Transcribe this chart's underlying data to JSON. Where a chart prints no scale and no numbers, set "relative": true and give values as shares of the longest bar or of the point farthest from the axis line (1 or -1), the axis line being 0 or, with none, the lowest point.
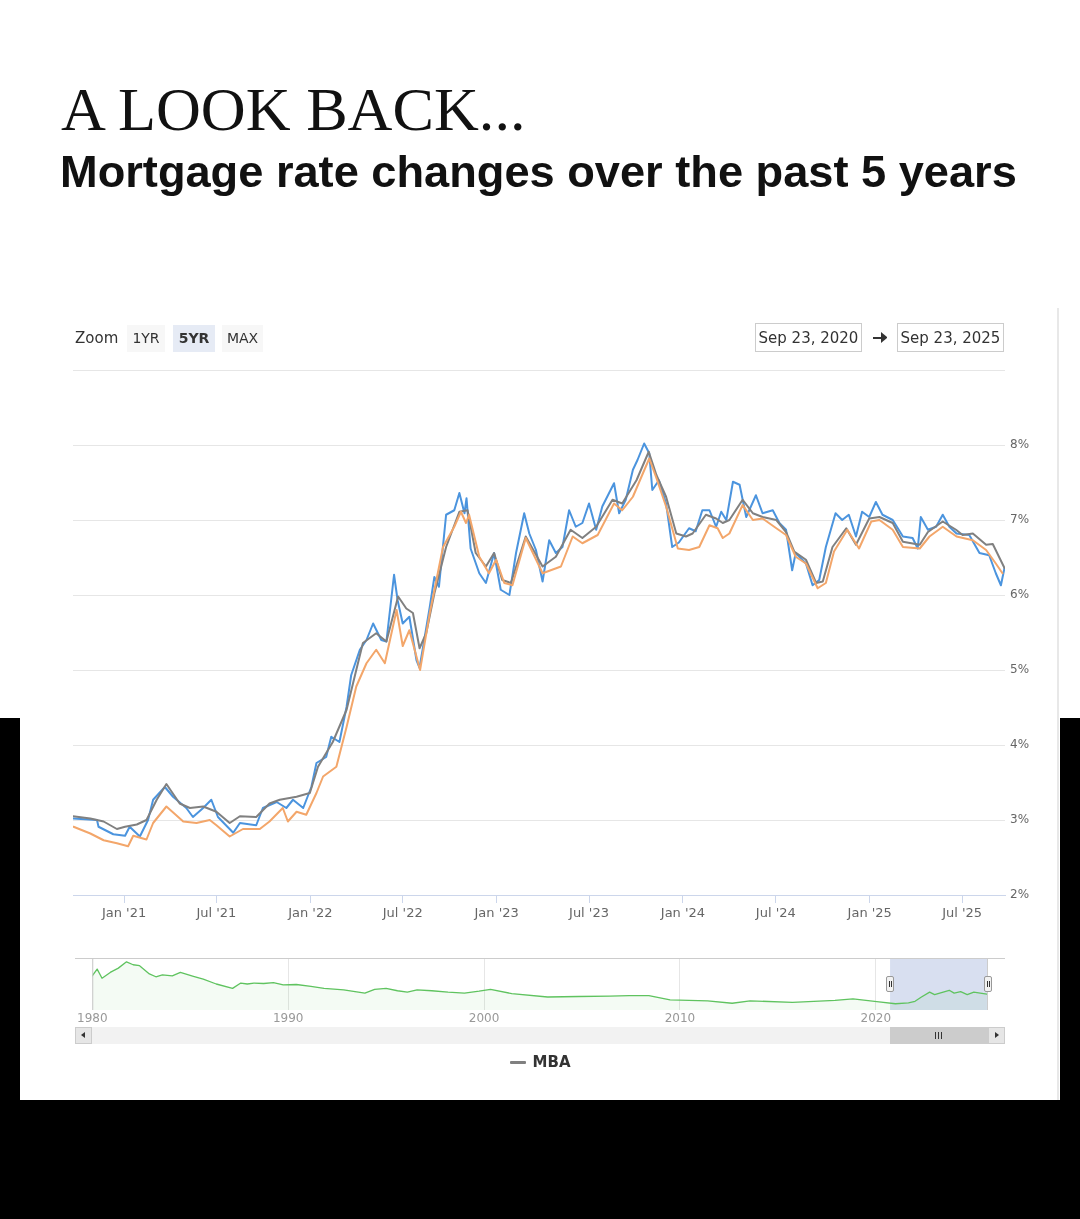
{
  "chart_data": [
    {
      "type": "line",
      "title": "A LOOK BACK...",
      "subtitle": "Mortgage rate changes over the past 5 years",
      "annotations": [
        "Zoom",
        "1YR",
        "5YR",
        "MAX",
        "Sep 23, 2020",
        "Sep 23, 2025"
      ],
      "xlim": [
        "2020-09-23",
        "2025-09-23"
      ],
      "xticks": [
        {
          "value": "2021-01-01",
          "label": "Jan '21"
        },
        {
          "value": "2021-07-01",
          "label": "Jul '21"
        },
        {
          "value": "2022-01-01",
          "label": "Jan '22"
        },
        {
          "value": "2022-07-01",
          "label": "Jul '22"
        },
        {
          "value": "2023-01-01",
          "label": "Jan '23"
        },
        {
          "value": "2023-07-01",
          "label": "Jul '23"
        },
        {
          "value": "2024-01-01",
          "label": "Jan '24"
        },
        {
          "value": "2024-07-01",
          "label": "Jul '24"
        },
        {
          "value": "2025-01-01",
          "label": "Jan '25"
        },
        {
          "value": "2025-07-01",
          "label": "Jul '25"
        }
      ],
      "ylim": [
        2,
        9
      ],
      "yticks": [
        {
          "value": 2,
          "label": "2%"
        },
        {
          "value": 3,
          "label": "3%"
        },
        {
          "value": 4,
          "label": "4%"
        },
        {
          "value": 5,
          "label": "5%"
        },
        {
          "value": 6,
          "label": "6%"
        },
        {
          "value": 7,
          "label": "7%"
        },
        {
          "value": 8,
          "label": "8%"
        },
        {
          "value": 9,
          "label": null
        }
      ],
      "grid": "y",
      "legend": "bottom",
      "marker": "none",
      "line_style": "solid",
      "series": [
        {
          "color": "#4b94de",
          "x": [
            "2020-09-23",
            "2020-11-09",
            "2020-11-12",
            "2020-12-11",
            "2021-01-03",
            "2021-01-12",
            "2021-02-01",
            "2021-02-17",
            "2021-02-27",
            "2021-03-22",
            "2021-04-07",
            "2021-05-03",
            "2021-05-16",
            "2021-06-05",
            "2021-06-21",
            "2021-07-04",
            "2021-08-03",
            "2021-08-16",
            "2021-09-17",
            "2021-09-30",
            "2021-10-27",
            "2021-11-15",
            "2021-11-28",
            "2021-12-18",
            "2022-01-03",
            "2022-01-13",
            "2022-02-01",
            "2022-02-11",
            "2022-02-27",
            "2022-03-13",
            "2022-03-22",
            "2022-04-08",
            "2022-04-21",
            "2022-05-04",
            "2022-05-20",
            "2022-05-30",
            "2022-06-14",
            "2022-06-21",
            "2022-07-01",
            "2022-07-14",
            "2022-07-28",
            "2022-08-03",
            "2022-08-23",
            "2022-09-01",
            "2022-09-10",
            "2022-09-24",
            "2022-10-10",
            "2022-10-20",
            "2022-10-30",
            "2022-11-03",
            "2022-11-11",
            "2022-11-28",
            "2022-12-11",
            "2022-12-27",
            "2023-01-09",
            "2023-01-26",
            "2023-02-08",
            "2023-02-24",
            "2023-03-06",
            "2023-03-19",
            "2023-04-01",
            "2023-04-14",
            "2023-04-27",
            "2023-05-10",
            "2023-05-23",
            "2023-06-05",
            "2023-06-18",
            "2023-07-01",
            "2023-07-15",
            "2023-07-27",
            "2023-08-19",
            "2023-08-29",
            "2023-09-11",
            "2023-09-25",
            "2023-10-04",
            "2023-10-17",
            "2023-10-27",
            "2023-11-02",
            "2023-11-15",
            "2023-11-29",
            "2023-12-11",
            "2023-12-24",
            "2024-01-13",
            "2024-01-26",
            "2024-02-08",
            "2024-02-22",
            "2024-03-06",
            "2024-03-16",
            "2024-03-26",
            "2024-04-08",
            "2024-04-21",
            "2024-05-04",
            "2024-05-23",
            "2024-06-05",
            "2024-06-25",
            "2024-07-08",
            "2024-07-21",
            "2024-08-02",
            "2024-08-09",
            "2024-08-29",
            "2024-09-11",
            "2024-09-24",
            "2024-10-07",
            "2024-10-26",
            "2024-11-08",
            "2024-11-21",
            "2024-12-05",
            "2024-12-17",
            "2024-12-31",
            "2025-01-13",
            "2025-01-26",
            "2025-02-15",
            "2025-03-07",
            "2025-03-26",
            "2025-04-05",
            "2025-04-11",
            "2025-04-25",
            "2025-05-11",
            "2025-05-24",
            "2025-06-06",
            "2025-06-20",
            "2025-07-15",
            "2025-08-04",
            "2025-08-23",
            "2025-09-05",
            "2025-09-15",
            "2025-09-22"
          ],
          "values": [
            3.02,
            3.0,
            2.91,
            2.81,
            2.79,
            2.91,
            2.78,
            3.0,
            3.27,
            3.44,
            3.31,
            3.16,
            3.04,
            3.16,
            3.27,
            3.04,
            2.83,
            2.96,
            2.93,
            3.16,
            3.24,
            3.16,
            3.27,
            3.16,
            3.44,
            3.76,
            3.84,
            4.11,
            4.04,
            4.51,
            4.93,
            5.27,
            5.4,
            5.62,
            5.4,
            5.38,
            6.27,
            5.93,
            5.62,
            5.71,
            5.13,
            5.03,
            5.84,
            6.24,
            6.11,
            7.07,
            7.13,
            7.36,
            7.09,
            7.29,
            6.62,
            6.29,
            6.16,
            6.56,
            6.07,
            6.0,
            6.56,
            7.09,
            6.82,
            6.6,
            6.18,
            6.73,
            6.56,
            6.64,
            7.13,
            6.91,
            6.96,
            7.22,
            6.87,
            7.18,
            7.49,
            7.09,
            7.27,
            7.67,
            7.8,
            8.02,
            7.89,
            7.4,
            7.53,
            7.22,
            6.64,
            6.7,
            6.89,
            6.85,
            7.13,
            7.13,
            6.91,
            7.11,
            7.0,
            7.51,
            7.47,
            7.04,
            7.33,
            7.09,
            7.13,
            6.96,
            6.87,
            6.33,
            6.56,
            6.42,
            6.13,
            6.2,
            6.64,
            7.09,
            7.0,
            7.07,
            6.78,
            7.11,
            7.04,
            7.24,
            7.07,
            7.0,
            6.78,
            6.76,
            6.62,
            7.04,
            6.87,
            6.91,
            7.07,
            6.91,
            6.82,
            6.8,
            6.56,
            6.53,
            6.29,
            6.13,
            6.36
          ]
        },
        {
          "name": "MBA",
          "color": "#808080",
          "x": [
            "2020-09-23",
            "2020-10-27",
            "2020-11-22",
            "2020-12-18",
            "2021-01-03",
            "2021-01-26",
            "2021-02-14",
            "2021-03-06",
            "2021-03-25",
            "2021-04-20",
            "2021-05-10",
            "2021-06-05",
            "2021-07-01",
            "2021-07-27",
            "2021-08-16",
            "2021-09-17",
            "2021-10-13",
            "2021-11-02",
            "2021-12-05",
            "2021-12-31",
            "2022-01-16",
            "2022-02-14",
            "2022-03-13",
            "2022-04-01",
            "2022-04-14",
            "2022-05-10",
            "2022-05-30",
            "2022-06-22",
            "2022-07-08",
            "2022-07-21",
            "2022-08-03",
            "2022-08-16",
            "2022-09-01",
            "2022-09-24",
            "2022-10-20",
            "2022-11-05",
            "2022-11-21",
            "2022-12-11",
            "2022-12-27",
            "2023-01-12",
            "2023-01-29",
            "2023-02-27",
            "2023-04-01",
            "2023-04-27",
            "2023-05-26",
            "2023-06-18",
            "2023-07-15",
            "2023-08-16",
            "2023-09-04",
            "2023-10-02",
            "2023-10-26",
            "2023-11-10",
            "2023-11-29",
            "2023-12-19",
            "2024-01-07",
            "2024-01-20",
            "2024-02-15",
            "2024-03-06",
            "2024-03-19",
            "2024-04-01",
            "2024-04-27",
            "2024-05-17",
            "2024-06-05",
            "2024-07-02",
            "2024-07-21",
            "2024-08-06",
            "2024-08-29",
            "2024-09-18",
            "2024-10-01",
            "2024-10-20",
            "2024-11-16",
            "2024-12-05",
            "2024-12-31",
            "2025-01-20",
            "2025-02-15",
            "2025-03-07",
            "2025-04-09",
            "2025-04-25",
            "2025-05-24",
            "2025-06-19",
            "2025-07-02",
            "2025-07-22",
            "2025-08-17",
            "2025-08-30",
            "2025-09-22"
          ],
          "values": [
            3.05,
            3.02,
            2.98,
            2.88,
            2.91,
            2.94,
            3.0,
            3.27,
            3.48,
            3.22,
            3.16,
            3.18,
            3.11,
            2.96,
            3.05,
            3.04,
            3.22,
            3.27,
            3.31,
            3.36,
            3.71,
            4.04,
            4.47,
            5.0,
            5.36,
            5.49,
            5.38,
            5.98,
            5.82,
            5.76,
            5.29,
            5.49,
            6.02,
            6.64,
            7.11,
            7.13,
            6.56,
            6.38,
            6.56,
            6.2,
            6.16,
            6.78,
            6.38,
            6.51,
            6.87,
            6.76,
            6.91,
            7.27,
            7.22,
            7.53,
            7.91,
            7.6,
            7.31,
            6.82,
            6.78,
            6.82,
            7.07,
            7.02,
            6.96,
            7.0,
            7.27,
            7.09,
            7.04,
            7.0,
            6.84,
            6.58,
            6.47,
            6.16,
            6.18,
            6.64,
            6.89,
            6.67,
            7.02,
            7.04,
            6.96,
            6.71,
            6.67,
            6.84,
            6.98,
            6.87,
            6.8,
            6.82,
            6.67,
            6.68,
            6.36
          ]
        },
        {
          "color": "#f3a66a",
          "x": [
            "2020-09-24",
            "2020-10-27",
            "2020-11-22",
            "2020-12-18",
            "2021-01-09",
            "2021-01-19",
            "2021-02-14",
            "2021-02-27",
            "2021-03-25",
            "2021-04-27",
            "2021-05-23",
            "2021-06-18",
            "2021-07-01",
            "2021-07-27",
            "2021-08-22",
            "2021-09-24",
            "2021-10-13",
            "2021-11-08",
            "2021-11-18",
            "2021-12-05",
            "2021-12-24",
            "2022-01-13",
            "2022-01-26",
            "2022-02-21",
            "2022-03-13",
            "2022-04-01",
            "2022-04-21",
            "2022-05-10",
            "2022-05-27",
            "2022-06-19",
            "2022-07-01",
            "2022-07-14",
            "2022-08-04",
            "2022-08-23",
            "2022-09-18",
            "2022-10-10",
            "2022-10-23",
            "2022-11-02",
            "2022-11-08",
            "2022-11-28",
            "2022-12-17",
            "2022-12-31",
            "2023-01-16",
            "2023-02-01",
            "2023-02-27",
            "2023-04-01",
            "2023-05-07",
            "2023-05-30",
            "2023-06-18",
            "2023-07-18",
            "2023-08-19",
            "2023-09-04",
            "2023-09-25",
            "2023-10-27",
            "2023-11-10",
            "2023-11-29",
            "2023-12-22",
            "2024-01-13",
            "2024-02-02",
            "2024-02-22",
            "2024-03-09",
            "2024-03-19",
            "2024-04-01",
            "2024-04-27",
            "2024-05-17",
            "2024-06-05",
            "2024-07-02",
            "2024-07-21",
            "2024-08-09",
            "2024-08-29",
            "2024-09-21",
            "2024-10-07",
            "2024-10-23",
            "2024-11-18",
            "2024-12-11",
            "2025-01-04",
            "2025-01-20",
            "2025-02-15",
            "2025-03-07",
            "2025-04-09",
            "2025-04-28",
            "2025-05-24",
            "2025-06-20",
            "2025-07-22",
            "2025-08-17",
            "2025-09-05",
            "2025-09-18"
          ],
          "values": [
            2.91,
            2.82,
            2.73,
            2.69,
            2.65,
            2.79,
            2.74,
            2.96,
            3.18,
            2.98,
            2.96,
            3.0,
            2.93,
            2.78,
            2.88,
            2.88,
            2.98,
            3.16,
            2.98,
            3.11,
            3.07,
            3.36,
            3.58,
            3.71,
            4.24,
            4.78,
            5.09,
            5.27,
            5.09,
            5.8,
            5.32,
            5.53,
            5.0,
            5.76,
            6.64,
            6.91,
            7.11,
            6.96,
            7.07,
            6.51,
            6.29,
            6.47,
            6.16,
            6.13,
            6.76,
            6.29,
            6.38,
            6.78,
            6.69,
            6.8,
            7.22,
            7.13,
            7.31,
            7.82,
            7.56,
            7.18,
            6.62,
            6.6,
            6.64,
            6.93,
            6.89,
            6.76,
            6.82,
            7.2,
            7.0,
            7.02,
            6.89,
            6.8,
            6.51,
            6.42,
            6.09,
            6.16,
            6.58,
            6.87,
            6.62,
            6.98,
            7.0,
            6.87,
            6.64,
            6.62,
            6.78,
            6.91,
            6.78,
            6.73,
            6.6,
            6.42,
            6.29
          ]
        }
      ]
    },
    {
      "type": "area",
      "relative": true,
      "color": "#5fc35f",
      "x": [
        "1980-01",
        "1980-04",
        "1980-07",
        "1980-12",
        "1981-05",
        "1981-10",
        "1982-02",
        "1982-06",
        "1982-12",
        "1983-04",
        "1983-08",
        "1984-02",
        "1984-07",
        "1985-03",
        "1985-09",
        "1986-05",
        "1987-03",
        "1987-08",
        "1987-12",
        "1988-04",
        "1988-10",
        "1989-04",
        "1989-10",
        "1990-06",
        "1991-03",
        "1991-11",
        "1992-11",
        "1993-12",
        "1994-06",
        "1995-01",
        "1995-08",
        "1996-02",
        "1996-08",
        "1997-05",
        "1998-03",
        "1999-01",
        "1999-10",
        "2000-05",
        "2001-06",
        "2003-04",
        "2004-11",
        "2006-06",
        "2007-06",
        "2008-06",
        "2009-07",
        "2011-06",
        "2012-09",
        "2013-08",
        "2015-10",
        "2017-12",
        "2018-11",
        "2020-03",
        "2021-01",
        "2021-09",
        "2022-01",
        "2022-05",
        "2022-10",
        "2023-01",
        "2023-10",
        "2024-01",
        "2024-05",
        "2024-09",
        "2025-01",
        "2025-09"
      ],
      "values": [
        0.71,
        0.85,
        0.66,
        0.78,
        0.87,
        1,
        0.94,
        0.92,
        0.75,
        0.69,
        0.73,
        0.71,
        0.78,
        0.7,
        0.64,
        0.54,
        0.45,
        0.56,
        0.54,
        0.56,
        0.55,
        0.57,
        0.52,
        0.53,
        0.49,
        0.45,
        0.42,
        0.35,
        0.43,
        0.45,
        0.4,
        0.37,
        0.42,
        0.4,
        0.37,
        0.35,
        0.39,
        0.43,
        0.34,
        0.27,
        0.28,
        0.29,
        0.3,
        0.3,
        0.21,
        0.19,
        0.14,
        0.19,
        0.16,
        0.2,
        0.23,
        0.17,
        0.13,
        0.15,
        0.18,
        0.27,
        0.37,
        0.32,
        0.41,
        0.35,
        0.38,
        0.32,
        0.37,
        0.33
      ],
      "xlim": [
        "1980-01",
        "2025-09-23"
      ],
      "xticks": [
        {
          "value": "1980",
          "label": "1980"
        },
        {
          "value": "1990",
          "label": "1990"
        },
        {
          "value": "2000",
          "label": "2000"
        },
        {
          "value": "2010",
          "label": "2010"
        },
        {
          "value": "2020",
          "label": "2020"
        }
      ],
      "grid": "x",
      "bands": [
        {
          "axis": "x",
          "from": "2020-09-23",
          "to": "2025-09-23",
          "color": "#d8dff0"
        }
      ]
    }
  ]
}
